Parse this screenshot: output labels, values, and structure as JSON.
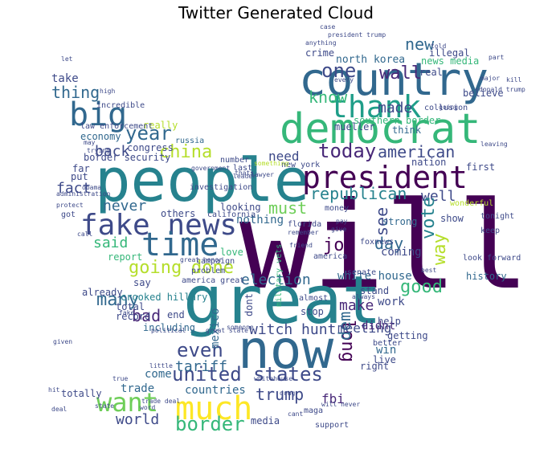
{
  "title": "Twitter Generated Cloud",
  "palette": [
    "#440154",
    "#482878",
    "#3e4a89",
    "#31688e",
    "#26828e",
    "#1f9e89",
    "#35b779",
    "#6ece58",
    "#b5de2b",
    "#fde725"
  ],
  "words": [
    {
      "text": "will",
      "color": "#440154"
    },
    {
      "text": "great",
      "color": "#26828e"
    },
    {
      "text": "people",
      "color": "#26828e"
    },
    {
      "text": "now",
      "color": "#31688e"
    },
    {
      "text": "country",
      "color": "#31688e"
    },
    {
      "text": "democrat",
      "color": "#35b779"
    },
    {
      "text": "president",
      "color": "#440154"
    },
    {
      "text": "fake news",
      "color": "#3e4a89"
    },
    {
      "text": "time",
      "color": "#31688e"
    },
    {
      "text": "thank",
      "color": "#1f9e89"
    },
    {
      "text": "big",
      "color": "#31688e"
    },
    {
      "text": "want",
      "color": "#6ece58"
    },
    {
      "text": "much",
      "color": "#fde725"
    },
    {
      "text": "united states",
      "color": "#3e4a89"
    },
    {
      "text": "china",
      "color": "#b5de2b"
    },
    {
      "text": "year",
      "color": "#31688e"
    },
    {
      "text": "today",
      "color": "#482878"
    },
    {
      "text": "american",
      "color": "#3e4a89"
    },
    {
      "text": "republican",
      "color": "#26828e"
    },
    {
      "text": "one",
      "color": "#3e4a89"
    },
    {
      "text": "wall",
      "color": "#482878"
    },
    {
      "text": "new",
      "color": "#31688e"
    },
    {
      "text": "know",
      "color": "#35b779"
    },
    {
      "text": "made",
      "color": "#3e4a89"
    },
    {
      "text": "north korea",
      "color": "#31688e"
    },
    {
      "text": "thing",
      "color": "#31688e"
    },
    {
      "text": "back",
      "color": "#3e4a89"
    },
    {
      "text": "need",
      "color": "#3e4a89"
    },
    {
      "text": "must",
      "color": "#6ece58"
    },
    {
      "text": "fact",
      "color": "#3e4a89"
    },
    {
      "text": "never",
      "color": "#31688e"
    },
    {
      "text": "well",
      "color": "#3e4a89"
    },
    {
      "text": "vote",
      "color": "#26828e"
    },
    {
      "text": "way",
      "color": "#b5de2b"
    },
    {
      "text": "see",
      "color": "#3e4a89"
    },
    {
      "text": "job",
      "color": "#440154"
    },
    {
      "text": "day",
      "color": "#31688e"
    },
    {
      "text": "said",
      "color": "#35b779"
    },
    {
      "text": "going",
      "color": "#b5de2b"
    },
    {
      "text": "done",
      "color": "#b5de2b"
    },
    {
      "text": "nothing",
      "color": "#31688e"
    },
    {
      "text": "many",
      "color": "#31688e"
    },
    {
      "text": "election",
      "color": "#31688e"
    },
    {
      "text": "good",
      "color": "#35b779"
    },
    {
      "text": "bad",
      "color": "#482878"
    },
    {
      "text": "make",
      "color": "#482878"
    },
    {
      "text": "long",
      "color": "#440154"
    },
    {
      "text": "dem",
      "color": "#31688e"
    },
    {
      "text": "witch hunt",
      "color": "#3e4a89"
    },
    {
      "text": "meeting",
      "color": "#3e4a89"
    },
    {
      "text": "white house",
      "color": "#31688e"
    },
    {
      "text": "work",
      "color": "#3e4a89"
    },
    {
      "text": "even",
      "color": "#3e4a89"
    },
    {
      "text": "tariff",
      "color": "#31688e"
    },
    {
      "text": "trump",
      "color": "#3e4a89"
    },
    {
      "text": "fbi",
      "color": "#482878"
    },
    {
      "text": "border",
      "color": "#35b779"
    },
    {
      "text": "world",
      "color": "#3e4a89"
    },
    {
      "text": "trade",
      "color": "#31688e"
    },
    {
      "text": "come",
      "color": "#31688e"
    },
    {
      "text": "countries",
      "color": "#31688e"
    },
    {
      "text": "mexico",
      "color": "#31688e"
    },
    {
      "text": "dont",
      "color": "#3e4a89"
    },
    {
      "text": "didnt",
      "color": "#482878"
    },
    {
      "text": "take",
      "color": "#3e4a89"
    },
    {
      "text": "crime",
      "color": "#3e4a89"
    },
    {
      "text": "news media",
      "color": "#35b779"
    },
    {
      "text": "illegal",
      "color": "#3e4a89"
    },
    {
      "text": "crooked hillary",
      "color": "#26828e"
    },
    {
      "text": "including",
      "color": "#31688e"
    },
    {
      "text": "really",
      "color": "#b5de2b"
    },
    {
      "text": "russia",
      "color": "#31688e"
    },
    {
      "text": "economy",
      "color": "#31688e"
    },
    {
      "text": "congress",
      "color": "#3e4a89"
    },
    {
      "text": "border security",
      "color": "#3e4a89"
    },
    {
      "text": "southern border",
      "color": "#35b779"
    },
    {
      "text": "think",
      "color": "#31688e"
    },
    {
      "text": "nation",
      "color": "#3e4a89"
    },
    {
      "text": "new york",
      "color": "#3e4a89"
    },
    {
      "text": "first",
      "color": "#3e4a89"
    },
    {
      "text": "mueller",
      "color": "#3e4a89"
    },
    {
      "text": "collusion",
      "color": "#3e4a89"
    },
    {
      "text": "believe",
      "color": "#3e4a89"
    },
    {
      "text": "real",
      "color": "#3e4a89"
    },
    {
      "text": "strong",
      "color": "#31688e"
    },
    {
      "text": "money",
      "color": "#3e4a89"
    },
    {
      "text": "florida",
      "color": "#3e4a89"
    },
    {
      "text": "show",
      "color": "#3e4a89"
    },
    {
      "text": "history",
      "color": "#31688e"
    },
    {
      "text": "look forward",
      "color": "#3e4a89"
    },
    {
      "text": "coming",
      "color": "#3e4a89"
    },
    {
      "text": "foxnews",
      "color": "#3e4a89"
    },
    {
      "text": "senate",
      "color": "#3e4a89"
    },
    {
      "text": "america",
      "color": "#3e4a89"
    },
    {
      "text": "help",
      "color": "#3e4a89"
    },
    {
      "text": "getting",
      "color": "#3e4a89"
    },
    {
      "text": "better",
      "color": "#3e4a89"
    },
    {
      "text": "win",
      "color": "#31688e"
    },
    {
      "text": "live",
      "color": "#3e4a89"
    },
    {
      "text": "right",
      "color": "#3e4a89"
    },
    {
      "text": "stop",
      "color": "#3e4a89"
    },
    {
      "text": "almost",
      "color": "#3e4a89"
    },
    {
      "text": "stand",
      "color": "#3e4a89"
    },
    {
      "text": "total",
      "color": "#3e4a89"
    },
    {
      "text": "record",
      "color": "#3e4a89"
    },
    {
      "text": "already",
      "color": "#3e4a89"
    },
    {
      "text": "say",
      "color": "#3e4a89"
    },
    {
      "text": "end",
      "color": "#3e4a89"
    },
    {
      "text": "report",
      "color": "#35b779"
    },
    {
      "text": "love",
      "color": "#35b779"
    },
    {
      "text": "others",
      "color": "#3e4a89"
    },
    {
      "text": "looking",
      "color": "#3e4a89"
    },
    {
      "text": "totally",
      "color": "#3e4a89"
    },
    {
      "text": "media",
      "color": "#3e4a89"
    },
    {
      "text": "support",
      "color": "#3e4a89"
    },
    {
      "text": "maga",
      "color": "#3e4a89"
    },
    {
      "text": "far",
      "color": "#3e4a89"
    },
    {
      "text": "put",
      "color": "#3e4a89"
    },
    {
      "text": "incredible",
      "color": "#3e4a89"
    },
    {
      "text": "law enforcement",
      "color": "#3e4a89"
    },
    {
      "text": "number",
      "color": "#3e4a89"
    },
    {
      "text": "last",
      "color": "#3e4a89"
    },
    {
      "text": "investigation",
      "color": "#3e4a89"
    },
    {
      "text": "california",
      "color": "#3e4a89"
    },
    {
      "text": "campaign",
      "color": "#3e4a89"
    },
    {
      "text": "problem",
      "color": "#3e4a89"
    },
    {
      "text": "america great",
      "color": "#3e4a89"
    },
    {
      "text": "political",
      "color": "#3e4a89"
    },
    {
      "text": "trade deal",
      "color": "#3e4a89"
    },
    {
      "text": "state",
      "color": "#3e4a89"
    },
    {
      "text": "true",
      "color": "#3e4a89"
    },
    {
      "text": "little",
      "color": "#3e4a89"
    },
    {
      "text": "whitehouse",
      "color": "#3e4a89"
    },
    {
      "text": "word",
      "color": "#3e4a89"
    },
    {
      "text": "drug",
      "color": "#3e4a89"
    },
    {
      "text": "remember",
      "color": "#3e4a89"
    },
    {
      "text": "friend",
      "color": "#3e4a89"
    },
    {
      "text": "give",
      "color": "#3e4a89"
    },
    {
      "text": "pay",
      "color": "#3e4a89"
    },
    {
      "text": "wonderful",
      "color": "#b5de2b"
    },
    {
      "text": "tonight",
      "color": "#3e4a89"
    },
    {
      "text": "keep",
      "color": "#3e4a89"
    },
    {
      "text": "case",
      "color": "#3e4a89"
    },
    {
      "text": "president trump",
      "color": "#3e4a89"
    },
    {
      "text": "anything",
      "color": "#3e4a89"
    },
    {
      "text": "told",
      "color": "#3e4a89"
    },
    {
      "text": "part",
      "color": "#3e4a89"
    },
    {
      "text": "kill",
      "color": "#3e4a89"
    },
    {
      "text": "let",
      "color": "#3e4a89"
    },
    {
      "text": "high",
      "color": "#3e4a89"
    },
    {
      "text": "may",
      "color": "#3e4a89"
    },
    {
      "text": "trying",
      "color": "#3e4a89"
    },
    {
      "text": "government",
      "color": "#3e4a89"
    },
    {
      "text": "obama",
      "color": "#3e4a89"
    },
    {
      "text": "administration",
      "color": "#3e4a89"
    },
    {
      "text": "protect",
      "color": "#3e4a89"
    },
    {
      "text": "got",
      "color": "#3e4a89"
    },
    {
      "text": "call",
      "color": "#3e4a89"
    },
    {
      "text": "great honor",
      "color": "#3e4a89"
    },
    {
      "text": "leader",
      "color": "#3e4a89"
    },
    {
      "text": "lawyer",
      "color": "#3e4a89"
    },
    {
      "text": "every",
      "color": "#3e4a89"
    },
    {
      "text": "major",
      "color": "#3e4a89"
    },
    {
      "text": "donald trump",
      "color": "#3e4a89"
    },
    {
      "text": "deal",
      "color": "#3e4a89"
    },
    {
      "text": "given",
      "color": "#3e4a89"
    },
    {
      "text": "hit",
      "color": "#3e4a89"
    },
    {
      "text": "always",
      "color": "#3e4a89"
    },
    {
      "text": "best",
      "color": "#3e4a89"
    },
    {
      "text": "thats",
      "color": "#3e4a89"
    },
    {
      "text": "will never",
      "color": "#3e4a89"
    },
    {
      "text": "cant",
      "color": "#3e4a89"
    },
    {
      "text": "fake",
      "color": "#3e4a89"
    },
    {
      "text": "military vets",
      "color": "#35b779"
    },
    {
      "text": "great state",
      "color": "#3e4a89"
    },
    {
      "text": "something",
      "color": "#b5de2b"
    },
    {
      "text": "going",
      "color": "#3e4a89"
    },
    {
      "text": "someone",
      "color": "#3e4a89"
    },
    {
      "text": "leaving",
      "color": "#3e4a89"
    }
  ]
}
